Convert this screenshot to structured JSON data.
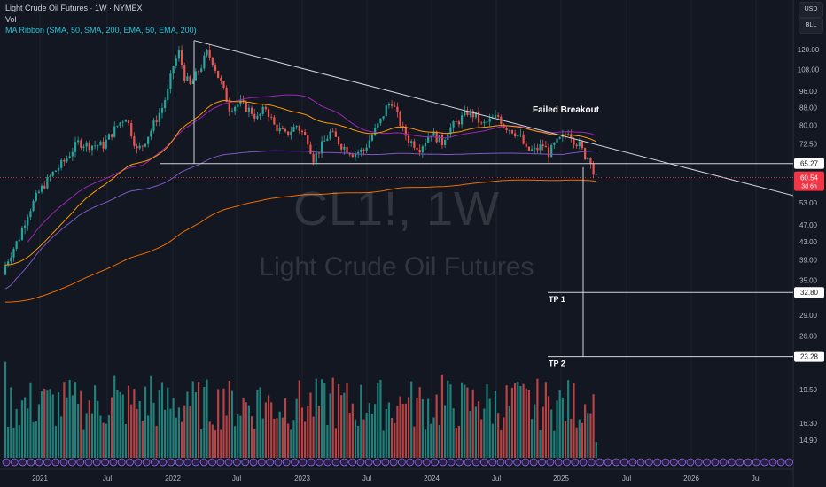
{
  "header": {
    "symbol_line": "Light Crude Oil Futures · 1W · NYMEX",
    "volume_label": "Vol",
    "ma_label": "MA Ribbon (SMA, 50, SMA, 200, EMA, 50, EMA, 200)"
  },
  "watermark": {
    "ticker": "CL1!, 1W",
    "name": "Light Crude Oil Futures"
  },
  "controls": {
    "currency": "USD",
    "unit": "BLL"
  },
  "colors": {
    "background": "#131722",
    "up": "#26a69a",
    "down": "#ef5350",
    "sma50": "#9c27b0",
    "sma200": "#7e57c2",
    "ema50": "#ff9800",
    "ema200": "#ef6c00",
    "price_tag": "#f23645"
  },
  "chart_data": {
    "type": "candlestick",
    "scale": "log",
    "ylim": [
      14.9,
      130
    ],
    "y_ticks": [
      "120.00",
      "108.00",
      "96.00",
      "88.00",
      "80.00",
      "72.50",
      "65.27",
      "60.54",
      "53.00",
      "47.00",
      "43.00",
      "39.00",
      "35.00",
      "32.80",
      "29.00",
      "26.00",
      "23.28",
      "19.50",
      "16.30",
      "14.90"
    ],
    "x_ticks": [
      "2021",
      "Jul",
      "2022",
      "Jul",
      "2023",
      "Jul",
      "2024",
      "Jul",
      "2025",
      "Jul",
      "2026",
      "Jul"
    ],
    "last_price": {
      "value": "60.54",
      "countdown": "3d 6h"
    },
    "levels": [
      {
        "name": "support",
        "value": 65.27,
        "label": "65.27"
      },
      {
        "name": "tp1",
        "value": 32.8,
        "label": "32.80",
        "text": "TP 1"
      },
      {
        "name": "tp2",
        "value": 23.28,
        "label": "23.28",
        "text": "TP 2"
      }
    ],
    "annotations": [
      {
        "text": "Failed Breakout"
      }
    ],
    "trendline": {
      "from": [
        "2022-03",
        126
      ],
      "to": [
        "2026-12",
        55
      ]
    }
  }
}
